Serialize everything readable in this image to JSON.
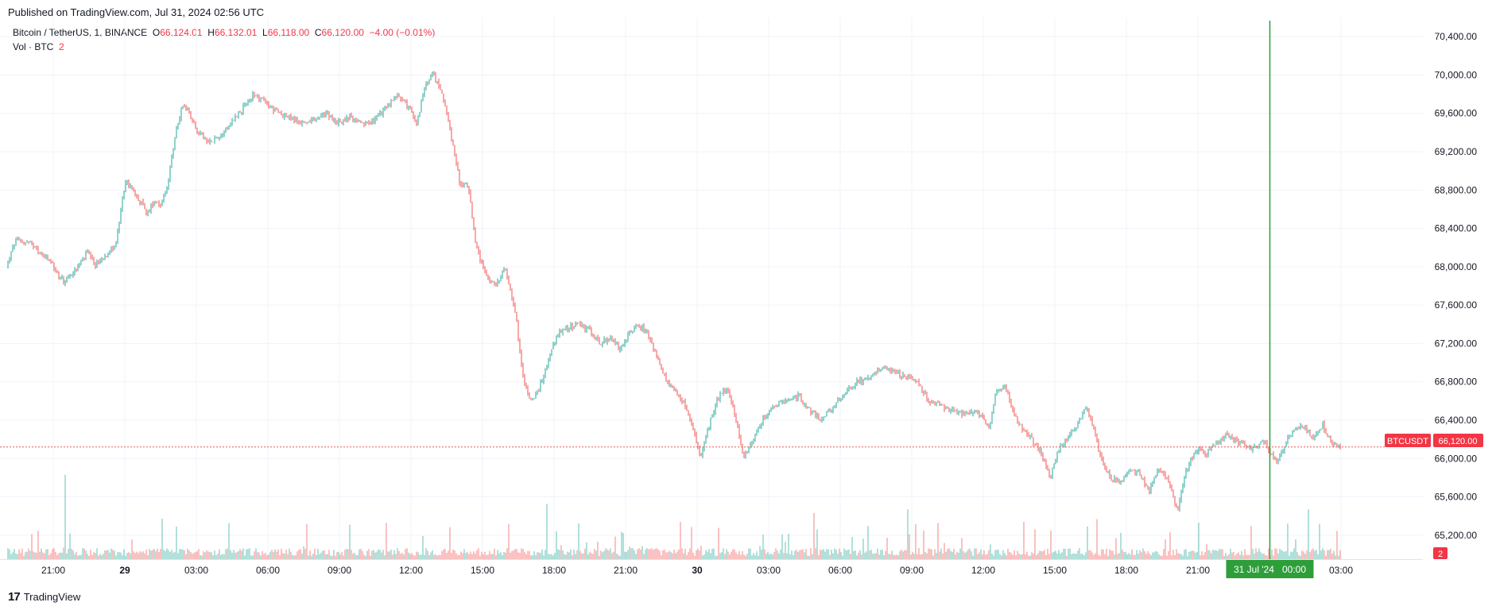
{
  "published": "Published on TradingView.com, Jul 31, 2024 02:56 UTC",
  "legend": {
    "symbol": "Bitcoin / TetherUS, 1, BINANCE",
    "o_label": "O",
    "o_val": "66,124.01",
    "h_label": "H",
    "h_val": "66,132.01",
    "l_label": "L",
    "l_val": "66,118.00",
    "c_label": "C",
    "c_val": "66,120.00",
    "change": "−4.00 (−0.01%)",
    "vol_label": "Vol · BTC",
    "vol_val": "2"
  },
  "price_tag": {
    "symbol": "BTCUSDT",
    "price": "66,120.00"
  },
  "vol_tag": "2",
  "cursor_date": "31 Jul '24   00:00",
  "footer_brand": "TradingView",
  "footer_logo": "17",
  "colors": {
    "up": "#26a69a",
    "down": "#ef5350",
    "cursor": "#2e9e3a",
    "grid": "#f0f3fa"
  },
  "chart_data": {
    "type": "candlestick",
    "title": "Bitcoin / TetherUS, 1, BINANCE",
    "interval_minutes": 1,
    "ylim": [
      64950,
      70600
    ],
    "y_ticks": [
      {
        "value": 65200,
        "label": "65,200.00"
      },
      {
        "value": 65600,
        "label": "65,600.00"
      },
      {
        "value": 66000,
        "label": "66,000.00"
      },
      {
        "value": 66400,
        "label": "66,400.00"
      },
      {
        "value": 66800,
        "label": "66,800.00"
      },
      {
        "value": 67200,
        "label": "67,200.00"
      },
      {
        "value": 67600,
        "label": "67,600.00"
      },
      {
        "value": 68000,
        "label": "68,000.00"
      },
      {
        "value": 68400,
        "label": "68,400.00"
      },
      {
        "value": 68800,
        "label": "68,800.00"
      },
      {
        "value": 69200,
        "label": "69,200.00"
      },
      {
        "value": 69600,
        "label": "69,600.00"
      },
      {
        "value": 70000,
        "label": "70,000.00"
      },
      {
        "value": 70400,
        "label": "70,400.00"
      }
    ],
    "x_range_hours": [
      -4.9,
      33.0
    ],
    "x_ticks": [
      {
        "hour": -3,
        "label": "21:00",
        "bold": false
      },
      {
        "hour": 0,
        "label": "29",
        "bold": true
      },
      {
        "hour": 3,
        "label": "03:00",
        "bold": false
      },
      {
        "hour": 6,
        "label": "06:00",
        "bold": false
      },
      {
        "hour": 9,
        "label": "09:00",
        "bold": false
      },
      {
        "hour": 12,
        "label": "12:00",
        "bold": false
      },
      {
        "hour": 15,
        "label": "15:00",
        "bold": false
      },
      {
        "hour": 18,
        "label": "18:00",
        "bold": false
      },
      {
        "hour": 21,
        "label": "21:00",
        "bold": false
      },
      {
        "hour": 24,
        "label": "30",
        "bold": true
      },
      {
        "hour": 27,
        "label": "03:00",
        "bold": false
      },
      {
        "hour": 30,
        "label": "06:00",
        "bold": false
      },
      {
        "hour": 33,
        "label": "09:00",
        "bold": false
      },
      {
        "hour": 36,
        "label": "12:00",
        "bold": false
      },
      {
        "hour": 39,
        "label": "15:00",
        "bold": false
      },
      {
        "hour": 42,
        "label": "18:00",
        "bold": false
      },
      {
        "hour": 45,
        "label": "21:00",
        "bold": false
      },
      {
        "hour": 51,
        "label": "03:00",
        "bold": false
      }
    ],
    "last_price": 66120,
    "cursor_hour": 48,
    "price_path": [
      [
        -4.9,
        68000
      ],
      [
        -4.5,
        68280
      ],
      [
        -4.0,
        68250
      ],
      [
        -3.5,
        68150
      ],
      [
        -3.0,
        68030
      ],
      [
        -2.7,
        67900
      ],
      [
        -2.5,
        67850
      ],
      [
        -2.0,
        67960
      ],
      [
        -1.5,
        68150
      ],
      [
        -1.2,
        68020
      ],
      [
        -0.8,
        68100
      ],
      [
        -0.3,
        68250
      ],
      [
        0.1,
        68900
      ],
      [
        0.4,
        68800
      ],
      [
        0.8,
        68650
      ],
      [
        1.0,
        68550
      ],
      [
        1.3,
        68700
      ],
      [
        1.6,
        68650
      ],
      [
        1.9,
        68900
      ],
      [
        2.2,
        69400
      ],
      [
        2.5,
        69700
      ],
      [
        2.8,
        69600
      ],
      [
        3.1,
        69420
      ],
      [
        3.5,
        69300
      ],
      [
        4.0,
        69350
      ],
      [
        4.5,
        69500
      ],
      [
        5.0,
        69650
      ],
      [
        5.5,
        69800
      ],
      [
        6.0,
        69700
      ],
      [
        6.5,
        69600
      ],
      [
        7.0,
        69550
      ],
      [
        7.5,
        69500
      ],
      [
        8.0,
        69520
      ],
      [
        8.5,
        69600
      ],
      [
        9.0,
        69500
      ],
      [
        9.5,
        69560
      ],
      [
        10.0,
        69480
      ],
      [
        10.5,
        69520
      ],
      [
        11.0,
        69650
      ],
      [
        11.5,
        69800
      ],
      [
        12.0,
        69650
      ],
      [
        12.3,
        69500
      ],
      [
        12.7,
        69900
      ],
      [
        13.0,
        70000
      ],
      [
        13.4,
        69800
      ],
      [
        13.8,
        69300
      ],
      [
        14.1,
        68900
      ],
      [
        14.5,
        68800
      ],
      [
        14.8,
        68200
      ],
      [
        15.2,
        67900
      ],
      [
        15.6,
        67800
      ],
      [
        16.0,
        68000
      ],
      [
        16.4,
        67600
      ],
      [
        16.8,
        66800
      ],
      [
        17.1,
        66600
      ],
      [
        17.4,
        66700
      ],
      [
        17.8,
        67000
      ],
      [
        18.2,
        67300
      ],
      [
        18.6,
        67350
      ],
      [
        19.0,
        67400
      ],
      [
        19.5,
        67350
      ],
      [
        20.0,
        67200
      ],
      [
        20.4,
        67250
      ],
      [
        20.8,
        67150
      ],
      [
        21.2,
        67300
      ],
      [
        21.6,
        67400
      ],
      [
        22.0,
        67300
      ],
      [
        22.4,
        67050
      ],
      [
        22.8,
        66800
      ],
      [
        23.1,
        66700
      ],
      [
        23.5,
        66600
      ],
      [
        23.8,
        66400
      ],
      [
        24.2,
        66000
      ],
      [
        24.5,
        66300
      ],
      [
        24.9,
        66600
      ],
      [
        25.3,
        66750
      ],
      [
        25.7,
        66400
      ],
      [
        26.0,
        66000
      ],
      [
        26.3,
        66150
      ],
      [
        26.8,
        66400
      ],
      [
        27.3,
        66550
      ],
      [
        27.8,
        66600
      ],
      [
        28.3,
        66650
      ],
      [
        28.8,
        66500
      ],
      [
        29.3,
        66400
      ],
      [
        29.8,
        66550
      ],
      [
        30.3,
        66700
      ],
      [
        30.8,
        66800
      ],
      [
        31.3,
        66850
      ],
      [
        31.8,
        66950
      ],
      [
        32.3,
        66900
      ],
      [
        32.8,
        66850
      ],
      [
        33.3,
        66800
      ],
      [
        33.8,
        66600
      ],
      [
        34.3,
        66550
      ],
      [
        34.8,
        66500
      ],
      [
        35.3,
        66450
      ],
      [
        35.8,
        66500
      ],
      [
        36.3,
        66300
      ],
      [
        36.6,
        66700
      ],
      [
        37.0,
        66750
      ],
      [
        37.3,
        66500
      ],
      [
        37.7,
        66300
      ],
      [
        38.1,
        66200
      ],
      [
        38.5,
        66050
      ],
      [
        38.9,
        65800
      ],
      [
        39.2,
        66100
      ],
      [
        39.6,
        66200
      ],
      [
        40.0,
        66350
      ],
      [
        40.4,
        66550
      ],
      [
        40.7,
        66300
      ],
      [
        41.0,
        66000
      ],
      [
        41.4,
        65800
      ],
      [
        41.8,
        65750
      ],
      [
        42.2,
        65900
      ],
      [
        42.6,
        65850
      ],
      [
        43.0,
        65650
      ],
      [
        43.4,
        65900
      ],
      [
        43.8,
        65800
      ],
      [
        44.2,
        65450
      ],
      [
        44.6,
        65900
      ],
      [
        45.0,
        66100
      ],
      [
        45.4,
        66050
      ],
      [
        45.8,
        66150
      ],
      [
        46.2,
        66250
      ],
      [
        46.6,
        66200
      ],
      [
        47.0,
        66150
      ],
      [
        47.4,
        66100
      ],
      [
        47.8,
        66200
      ],
      [
        48.1,
        66050
      ],
      [
        48.4,
        65950
      ],
      [
        48.7,
        66150
      ],
      [
        49.1,
        66300
      ],
      [
        49.5,
        66350
      ],
      [
        49.9,
        66200
      ],
      [
        50.3,
        66350
      ],
      [
        50.7,
        66150
      ],
      [
        51.0,
        66120
      ]
    ]
  }
}
